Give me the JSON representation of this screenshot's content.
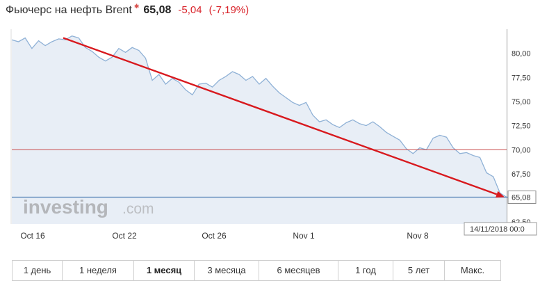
{
  "header": {
    "title": "Фьючерс на нефть Brent",
    "price": "65,08",
    "change": "-5,04",
    "change_pct": "(-7,19%)"
  },
  "watermark": {
    "text_main": "investing",
    "text_suffix": ".com"
  },
  "colors": {
    "line": "#8fb1d6",
    "fill": "#e8eef6",
    "trend_arrow": "#d8191e",
    "ref_line": "#c84a4a",
    "current_line": "#4f7fb3",
    "negative": "#d9232a"
  },
  "chart_data": {
    "type": "area",
    "x_tick_labels": [
      "Oct 16",
      "Oct 22",
      "Oct 26",
      "Nov 1",
      "Nov 8"
    ],
    "y_tick_labels": [
      "80,00",
      "77,50",
      "75,00",
      "72,50",
      "70,00",
      "67,50",
      "65,08",
      "62,50"
    ],
    "ylim": [
      62.3,
      82.5
    ],
    "series": [
      {
        "values": [
          81.4,
          81.2,
          81.6,
          80.5,
          81.3,
          80.8,
          81.2,
          81.5,
          81.4,
          81.8,
          81.6,
          80.6,
          80.2,
          79.6,
          79.2,
          79.6,
          80.5,
          80.1,
          80.6,
          80.3,
          79.5,
          77.2,
          77.8,
          76.8,
          77.4,
          77.0,
          76.2,
          75.7,
          76.8,
          76.9,
          76.5,
          77.2,
          77.6,
          78.1,
          77.8,
          77.2,
          77.6,
          76.8,
          77.4,
          76.6,
          75.9,
          75.4,
          74.9,
          74.6,
          74.9,
          73.6,
          72.9,
          73.1,
          72.6,
          72.3,
          72.8,
          73.1,
          72.7,
          72.5,
          72.9,
          72.4,
          71.8,
          71.4,
          71.0,
          70.1,
          69.6,
          70.2,
          70.0,
          71.2,
          71.5,
          71.3,
          70.2,
          69.6,
          69.7,
          69.4,
          69.2,
          67.6,
          67.2,
          65.5,
          65.08
        ]
      }
    ],
    "reference_lines": [
      {
        "value": 70.0,
        "label": ""
      },
      {
        "value": 65.08,
        "label": "65,08"
      }
    ],
    "trend_arrow": {
      "from": {
        "x_label": "Oct 17",
        "y": 81.6
      },
      "to": {
        "x_label": "Nov 13",
        "y": 65.08
      }
    },
    "crosshair_label": "14/11/2018 00:0"
  },
  "tabs": [
    {
      "label": "1 день",
      "active": false
    },
    {
      "label": "1 неделя",
      "active": false
    },
    {
      "label": "1 месяц",
      "active": true
    },
    {
      "label": "3 месяца",
      "active": false
    },
    {
      "label": "6 месяцев",
      "active": false
    },
    {
      "label": "1 год",
      "active": false
    },
    {
      "label": "5 лет",
      "active": false
    },
    {
      "label": "Макс.",
      "active": false
    }
  ]
}
